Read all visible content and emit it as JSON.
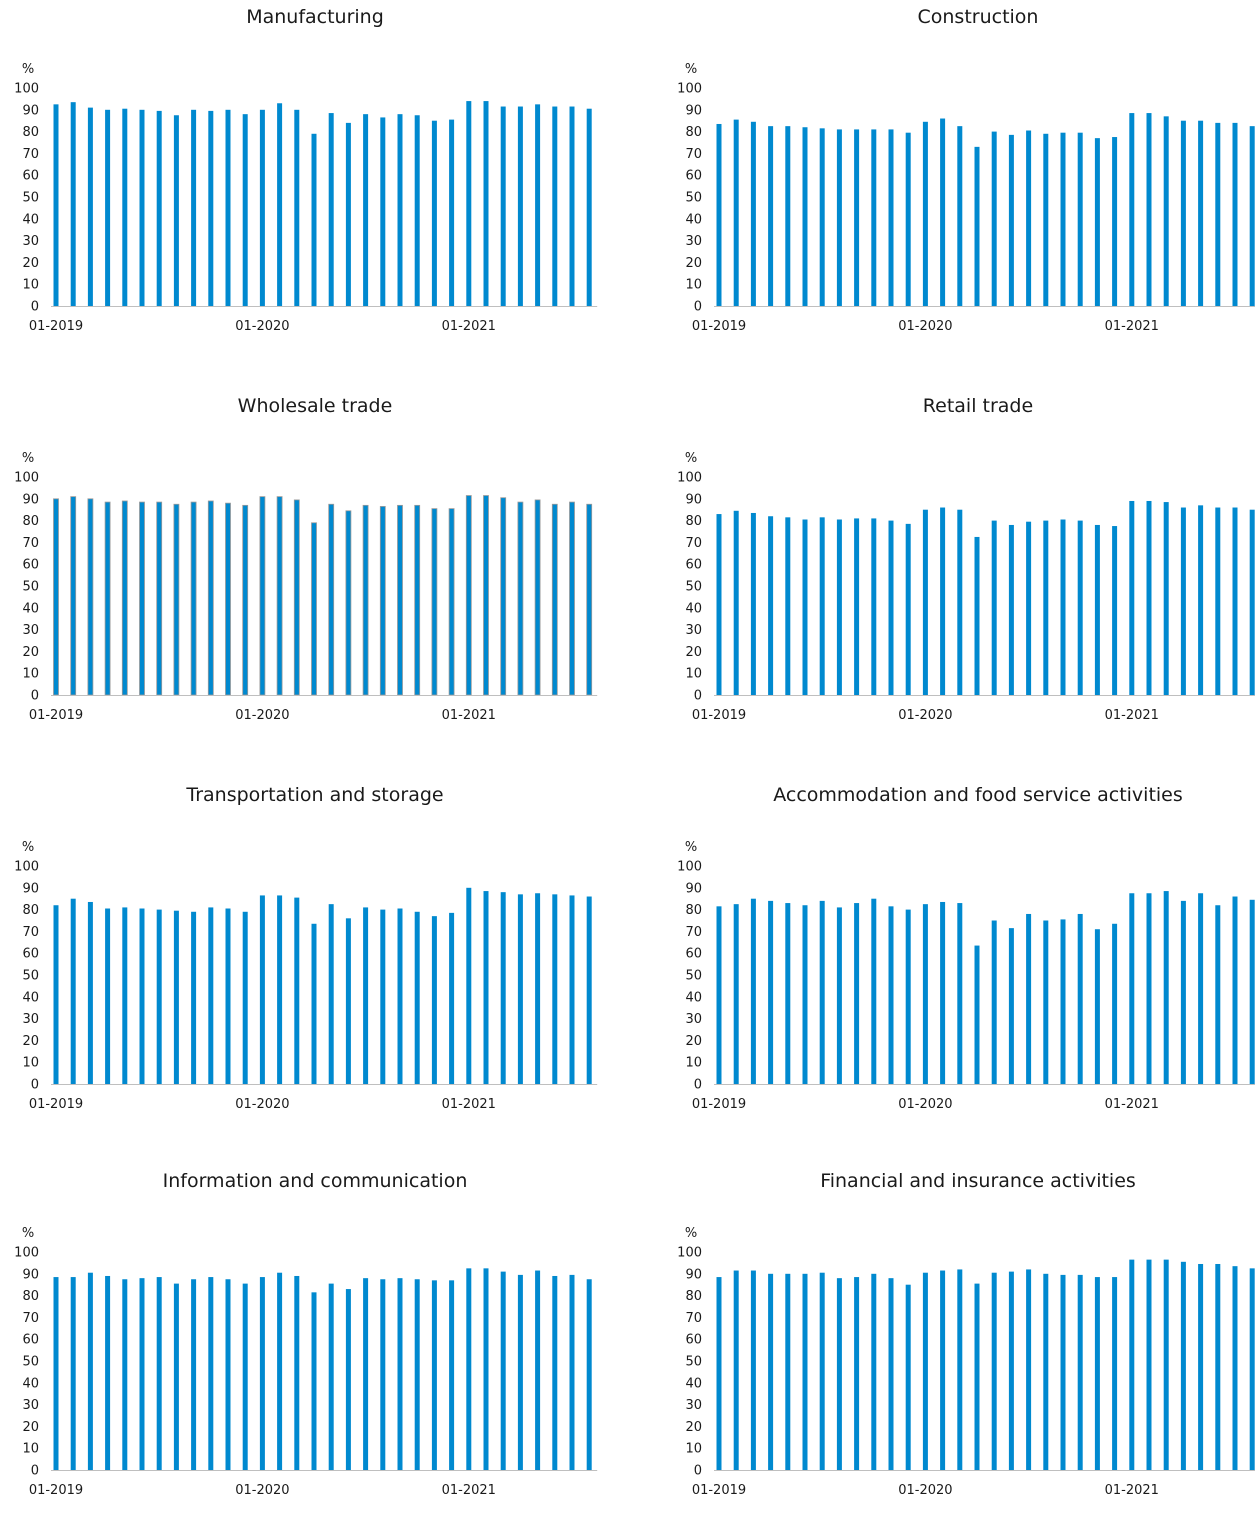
{
  "chart_data": [
    {
      "type": "bar",
      "title": "Manufacturing",
      "ylabel": "%",
      "ylim": [
        0,
        100
      ],
      "yticks": [
        0,
        10,
        20,
        30,
        40,
        50,
        60,
        70,
        80,
        90,
        100
      ],
      "xtick_labels": [
        {
          "index": 0,
          "label": "01-2019"
        },
        {
          "index": 12,
          "label": "01-2020"
        },
        {
          "index": 24,
          "label": "01-2021"
        }
      ],
      "color": "#0089cf",
      "values": [
        92.5,
        93.5,
        91,
        90,
        90.5,
        90,
        89.5,
        87.5,
        90,
        89.5,
        90,
        88,
        90,
        93,
        90,
        79,
        88.5,
        84,
        88,
        86.5,
        88,
        87.5,
        85,
        85.5,
        94,
        94,
        91.5,
        91.5,
        92.5,
        91.5,
        91.5,
        90.5
      ]
    },
    {
      "type": "bar",
      "title": "Construction",
      "ylabel": "%",
      "ylim": [
        0,
        100
      ],
      "yticks": [
        0,
        10,
        20,
        30,
        40,
        50,
        60,
        70,
        80,
        90,
        100
      ],
      "xtick_labels": [
        {
          "index": 0,
          "label": "01-2019"
        },
        {
          "index": 12,
          "label": "01-2020"
        },
        {
          "index": 24,
          "label": "01-2021"
        }
      ],
      "color": "#0089cf",
      "values": [
        83.5,
        85.5,
        84.5,
        82.5,
        82.5,
        82,
        81.5,
        81,
        81,
        81,
        81,
        79.5,
        84.5,
        86,
        82.5,
        73,
        80,
        78.5,
        80.5,
        79,
        79.5,
        79.5,
        77,
        77.5,
        88.5,
        88.5,
        87,
        85,
        85,
        84,
        84,
        82.5
      ]
    },
    {
      "type": "bar",
      "title": "Wholesale trade",
      "ylabel": "%",
      "ylim": [
        0,
        100
      ],
      "yticks": [
        0,
        10,
        20,
        30,
        40,
        50,
        60,
        70,
        80,
        90,
        100
      ],
      "xtick_labels": [
        {
          "index": 0,
          "label": "01-2019"
        },
        {
          "index": 12,
          "label": "01-2020"
        },
        {
          "index": 24,
          "label": "01-2021"
        }
      ],
      "color": "#0089cf",
      "edge": "#9a9a9a",
      "values": [
        90,
        91,
        90,
        88.5,
        89,
        88.5,
        88.5,
        87.5,
        88.5,
        89,
        88,
        87,
        91,
        91,
        89.5,
        79,
        87.5,
        84.5,
        87,
        86.5,
        87,
        87,
        85.5,
        85.5,
        91.5,
        91.5,
        90.5,
        88.5,
        89.5,
        87.5,
        88.5,
        87.5
      ]
    },
    {
      "type": "bar",
      "title": "Retail trade",
      "ylabel": "%",
      "ylim": [
        0,
        100
      ],
      "yticks": [
        0,
        10,
        20,
        30,
        40,
        50,
        60,
        70,
        80,
        90,
        100
      ],
      "xtick_labels": [
        {
          "index": 0,
          "label": "01-2019"
        },
        {
          "index": 12,
          "label": "01-2020"
        },
        {
          "index": 24,
          "label": "01-2021"
        }
      ],
      "color": "#0089cf",
      "values": [
        83,
        84.5,
        83.5,
        82,
        81.5,
        80.5,
        81.5,
        80.5,
        81,
        81,
        80,
        78.5,
        85,
        86,
        85,
        72.5,
        80,
        78,
        79.5,
        80,
        80.5,
        80,
        78,
        77.5,
        89,
        89,
        88.5,
        86,
        87,
        86,
        86,
        85
      ]
    },
    {
      "type": "bar",
      "title": "Transportation and storage",
      "ylabel": "%",
      "ylim": [
        0,
        100
      ],
      "yticks": [
        0,
        10,
        20,
        30,
        40,
        50,
        60,
        70,
        80,
        90,
        100
      ],
      "xtick_labels": [
        {
          "index": 0,
          "label": "01-2019"
        },
        {
          "index": 12,
          "label": "01-2020"
        },
        {
          "index": 24,
          "label": "01-2021"
        }
      ],
      "color": "#0089cf",
      "values": [
        82,
        85,
        83.5,
        80.5,
        81,
        80.5,
        80,
        79.5,
        79,
        81,
        80.5,
        79,
        86.5,
        86.5,
        85.5,
        73.5,
        82.5,
        76,
        81,
        80,
        80.5,
        79,
        77,
        78.5,
        90,
        88.5,
        88,
        87,
        87.5,
        87,
        86.5,
        86
      ]
    },
    {
      "type": "bar",
      "title": "Accommodation and food service activities",
      "ylabel": "%",
      "ylim": [
        0,
        100
      ],
      "yticks": [
        0,
        10,
        20,
        30,
        40,
        50,
        60,
        70,
        80,
        90,
        100
      ],
      "xtick_labels": [
        {
          "index": 0,
          "label": "01-2019"
        },
        {
          "index": 12,
          "label": "01-2020"
        },
        {
          "index": 24,
          "label": "01-2021"
        }
      ],
      "color": "#0089cf",
      "values": [
        81.5,
        82.5,
        85,
        84,
        83,
        82,
        84,
        81,
        83,
        85,
        81.5,
        80,
        82.5,
        83.5,
        83,
        63.5,
        75,
        71.5,
        78,
        75,
        75.5,
        78,
        71,
        73.5,
        87.5,
        87.5,
        88.5,
        84,
        87.5,
        82,
        86,
        84.5
      ]
    },
    {
      "type": "bar",
      "title": "Information and communication",
      "ylabel": "%",
      "ylim": [
        0,
        100
      ],
      "yticks": [
        0,
        10,
        20,
        30,
        40,
        50,
        60,
        70,
        80,
        90,
        100
      ],
      "xtick_labels": [
        {
          "index": 0,
          "label": "01-2019"
        },
        {
          "index": 12,
          "label": "01-2020"
        },
        {
          "index": 24,
          "label": "01-2021"
        }
      ],
      "color": "#0089cf",
      "values": [
        88.5,
        88.5,
        90.5,
        89,
        87.5,
        88,
        88.5,
        85.5,
        87.5,
        88.5,
        87.5,
        85.5,
        88.5,
        90.5,
        89,
        81.5,
        85.5,
        83,
        88,
        87.5,
        88,
        87.5,
        87,
        87,
        92.5,
        92.5,
        91,
        89.5,
        91.5,
        89,
        89.5,
        87.5
      ]
    },
    {
      "type": "bar",
      "title": "Financial and insurance activities",
      "ylabel": "%",
      "ylim": [
        0,
        100
      ],
      "yticks": [
        0,
        10,
        20,
        30,
        40,
        50,
        60,
        70,
        80,
        90,
        100
      ],
      "xtick_labels": [
        {
          "index": 0,
          "label": "01-2019"
        },
        {
          "index": 12,
          "label": "01-2020"
        },
        {
          "index": 24,
          "label": "01-2021"
        }
      ],
      "color": "#0089cf",
      "values": [
        88.5,
        91.5,
        91.5,
        90,
        90,
        90,
        90.5,
        88,
        88.5,
        90,
        88,
        85,
        90.5,
        91.5,
        92,
        85.5,
        90.5,
        91,
        92,
        90,
        89.5,
        89.5,
        88.5,
        88.5,
        96.5,
        96.5,
        96.5,
        95.5,
        94.5,
        94.5,
        93.5,
        92.5
      ]
    }
  ]
}
